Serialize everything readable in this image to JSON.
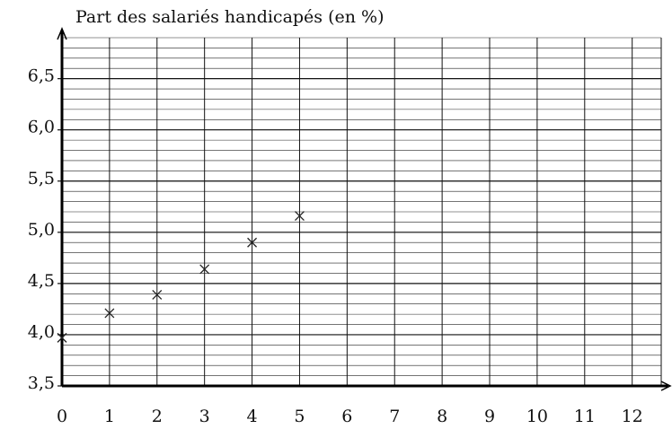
{
  "chart_data": {
    "type": "scatter",
    "title": "Part des salariés handicapés (en %)",
    "x": [
      0,
      1,
      2,
      3,
      4,
      5
    ],
    "values": [
      3.97,
      4.21,
      4.39,
      4.64,
      4.9,
      5.16
    ],
    "color": "#222222",
    "xlim": [
      0,
      12.8
    ],
    "xticks": [
      0,
      1,
      2,
      3,
      4,
      5,
      6,
      7,
      8,
      9,
      10,
      11,
      12
    ],
    "ylim": [
      3.5,
      6.9
    ],
    "yticks": [
      {
        "value": 3.5,
        "label": "3,5"
      },
      {
        "value": 4.0,
        "label": "4,0"
      },
      {
        "value": 4.5,
        "label": "4,5"
      },
      {
        "value": 5.0,
        "label": "5,0"
      },
      {
        "value": 5.5,
        "label": "5,5"
      },
      {
        "value": 6.0,
        "label": "6,0"
      },
      {
        "value": 6.5,
        "label": "6,5"
      }
    ],
    "minor_grid_step": 0.1,
    "grid": true
  }
}
